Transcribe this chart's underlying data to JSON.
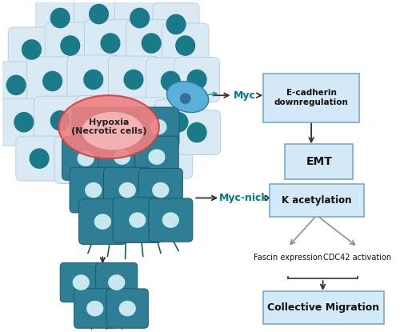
{
  "fig_width": 5.0,
  "fig_height": 4.15,
  "dpi": 100,
  "bg_color": "#ffffff",
  "light_cell_fill": "#daeaf5",
  "light_cell_edge": "#b0ccdd",
  "teal_nucleus": "#1a7a8a",
  "teal_cell_fill": "#2e7f95",
  "teal_cell_edge": "#1a5a6a",
  "teal_nucleus_light": "#c8e8f0",
  "hypoxia_text": "Hypoxia\n(Necrotic cells)",
  "hypoxia_fill": "#f08080",
  "hypoxia_fill2": "#fcc8c8",
  "hypoxia_edge": "#d04040",
  "myc_label": "Myc",
  "myc_nick_label": "Myc-nick",
  "myc_color": "#007a8a",
  "box1_text": "E-cadherin\ndownregulation",
  "box1_fill": "#d4eaf8",
  "box1_edge": "#7aaac8",
  "box2_text": "EMT",
  "box2_fill": "#d4eaf8",
  "box2_edge": "#7aaac8",
  "box3_text": "K acetylation",
  "box3_fill": "#d4eaf8",
  "box3_edge": "#7aaac8",
  "fascin_text": "Fascin expression",
  "cdc42_text": "CDC42 activation",
  "box4_text": "Collective Migration",
  "box4_fill": "#d4eaf8",
  "box4_edge": "#7aaac8",
  "arrow_dark": "#333333",
  "arrow_gray": "#888888"
}
